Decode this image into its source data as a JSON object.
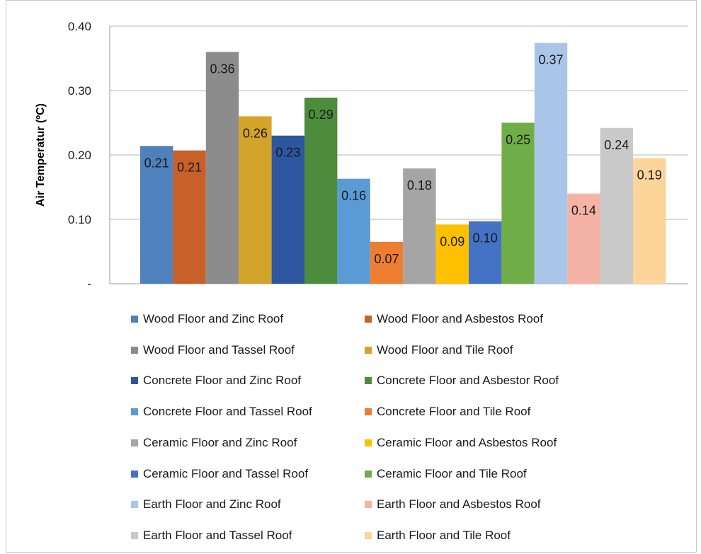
{
  "chart_data": {
    "type": "bar",
    "title": "",
    "xlabel": "",
    "ylabel": "Air Temperatur (ºC)",
    "ylim": [
      0,
      0.4
    ],
    "yticks": [
      {
        "value": 0,
        "label": "-"
      },
      {
        "value": 0.1,
        "label": "0.10"
      },
      {
        "value": 0.2,
        "label": "0.20"
      },
      {
        "value": 0.3,
        "label": "0.30"
      },
      {
        "value": 0.4,
        "label": "0.40"
      }
    ],
    "grid": true,
    "legend_position": "bottom",
    "series": [
      {
        "name": "Wood Floor  and Zinc Roof",
        "value": 0.214,
        "label": "0.21",
        "color": "#4f81bd"
      },
      {
        "name": "Wood Floor  and Asbestos Roof",
        "value": 0.207,
        "label": "0.21",
        "color": "#c8602a"
      },
      {
        "name": "Wood Floor  and Tassel Roof",
        "value": 0.36,
        "label": "0.36",
        "color": "#8c8c8c"
      },
      {
        "name": "Wood Floor  and Tile Roof",
        "value": 0.26,
        "label": "0.26",
        "color": "#d4a32a"
      },
      {
        "name": "Concrete Floor  and Zinc Roof",
        "value": 0.23,
        "label": "0.23",
        "color": "#2e55a0"
      },
      {
        "name": "Concrete Floor and Asbestor Roof",
        "value": 0.289,
        "label": "0.29",
        "color": "#4c8c3c"
      },
      {
        "name": "Concrete Floor and Tassel Roof",
        "value": 0.163,
        "label": "0.16",
        "color": "#5b9bd5"
      },
      {
        "name": "Concrete Floor and Tile Roof",
        "value": 0.065,
        "label": "0.07",
        "color": "#ed7d31"
      },
      {
        "name": "Ceramic Floor and Zinc Roof",
        "value": 0.179,
        "label": "0.18",
        "color": "#a5a5a5"
      },
      {
        "name": "Ceramic Floor and Asbestos Roof",
        "value": 0.092,
        "label": "0.09",
        "color": "#ffc000"
      },
      {
        "name": "Ceramic Floor and Tassel Roof",
        "value": 0.097,
        "label": "0.10",
        "color": "#4472c4"
      },
      {
        "name": "Ceramic Floor and Tile Roof",
        "value": 0.25,
        "label": "0.25",
        "color": "#70ad47"
      },
      {
        "name": "Earth Floor and Zinc Roof",
        "value": 0.374,
        "label": "0.37",
        "color": "#a9c6e8"
      },
      {
        "name": "Earth Floor and Asbestos Roof",
        "value": 0.14,
        "label": "0.14",
        "color": "#f4b3a4"
      },
      {
        "name": "Earth Floor and Tassel Roof",
        "value": 0.242,
        "label": "0.24",
        "color": "#c9c9c9"
      },
      {
        "name": "Earth Floor and Tile Roof",
        "value": 0.195,
        "label": "0.19",
        "color": "#fdd59a"
      }
    ]
  }
}
